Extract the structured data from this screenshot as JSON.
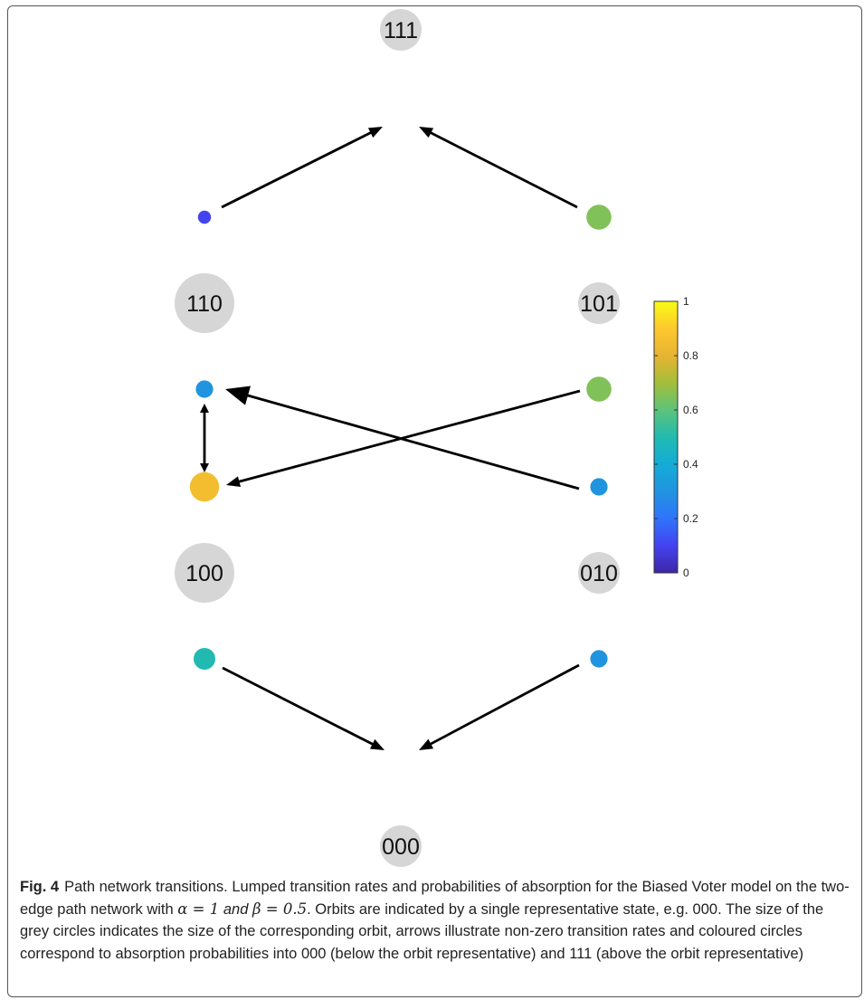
{
  "figure": {
    "nodes": [
      {
        "id": "111",
        "label": "111",
        "orbit_size": 1,
        "abs_000": null,
        "abs_111": null
      },
      {
        "id": "110",
        "label": "110",
        "orbit_size": 2,
        "abs_000": 0.3,
        "abs_111": 0.1
      },
      {
        "id": "101",
        "label": "101",
        "orbit_size": 1,
        "abs_000": 0.65,
        "abs_111": 0.65
      },
      {
        "id": "100",
        "label": "100",
        "orbit_size": 2,
        "abs_000": 0.5,
        "abs_111": 0.85
      },
      {
        "id": "010",
        "label": "010",
        "orbit_size": 1,
        "abs_000": 0.3,
        "abs_111": 0.3
      },
      {
        "id": "000",
        "label": "000",
        "orbit_size": 1,
        "abs_000": null,
        "abs_111": null
      }
    ],
    "edges": [
      {
        "from": "110",
        "to": "111"
      },
      {
        "from": "101",
        "to": "111"
      },
      {
        "from": "010",
        "to": "110"
      },
      {
        "from": "101",
        "to": "100"
      },
      {
        "from": "110",
        "to": "100",
        "bidirectional": true
      },
      {
        "from": "100",
        "to": "000"
      },
      {
        "from": "010",
        "to": "000"
      }
    ],
    "colorbar": {
      "ticks": [
        "0",
        "0.2",
        "0.4",
        "0.6",
        "0.8",
        "1"
      ],
      "min": 0,
      "max": 1,
      "colormap": "parula"
    },
    "orbit_circle_color": "#d6d6d6"
  },
  "caption": {
    "label": "Fig. 4",
    "text_before": "Path network transitions. Lumped transition rates and probabilities of absorption for the Biased Voter model on the two-edge path network with ",
    "alpha": "α = 1",
    "and": "and",
    "beta": "β = 0.5",
    "text_after": ". Orbits are indicated by a single representative state, e.g. 000. The size of the grey circles indicates the size of the corresponding orbit, arrows illustrate non-zero transition rates and coloured circles correspond to absorption probabilities into 000 (below the orbit representative) and 111 (above the orbit representative)"
  }
}
